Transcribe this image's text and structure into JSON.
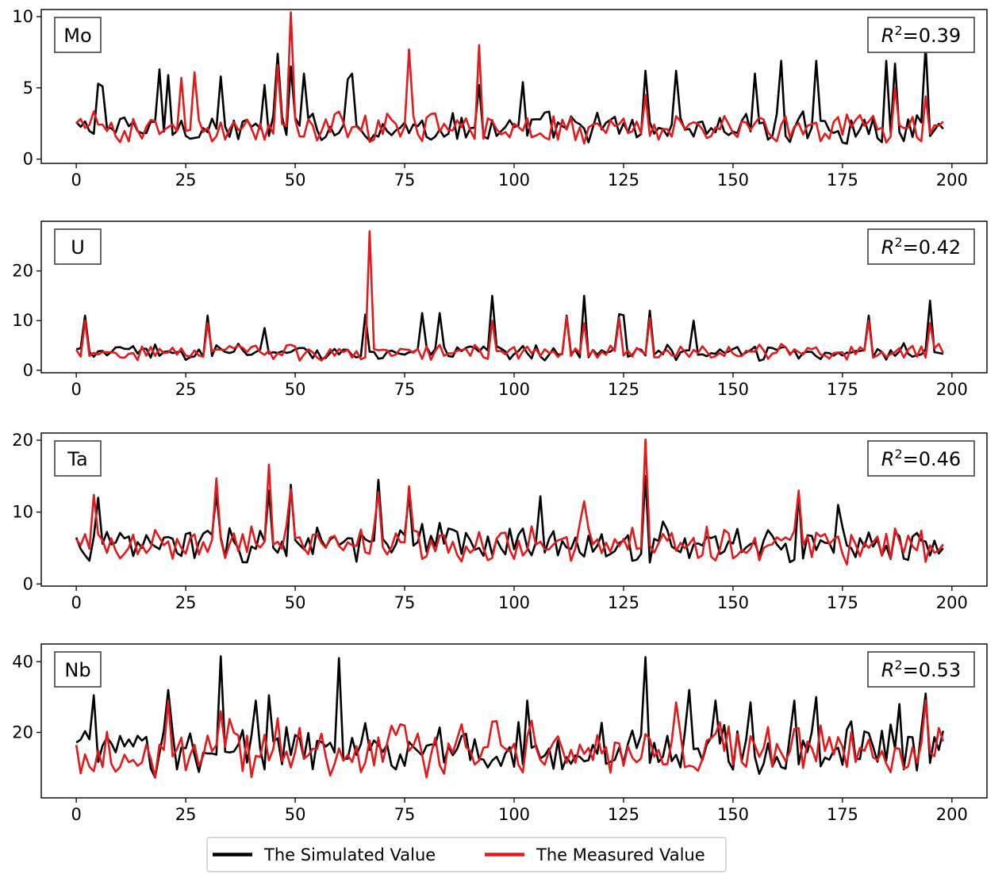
{
  "chart_data": {
    "type": "line",
    "legend": {
      "placement": "bottom-center",
      "entries": [
        {
          "label": "The Simulated Value",
          "color": "#000000"
        },
        {
          "label": "The Measured Value",
          "color": "#e31a1c"
        }
      ]
    },
    "panels": [
      {
        "element": "Mo",
        "r2_prefix": "R",
        "r2_exp": "2",
        "r2_value": "=0.39",
        "xlim": [
          -8,
          208
        ],
        "ylim": [
          -0.3,
          10.5
        ],
        "xticks": [
          0,
          25,
          50,
          75,
          100,
          125,
          150,
          175,
          200
        ],
        "yticks": [
          0,
          5,
          10
        ],
        "series": [
          {
            "color": "#000000",
            "peaks": {
              "5": 5.3,
              "6": 5.1,
              "19": 6.3,
              "21": 5.9,
              "46": 7.4,
              "52": 6.0,
              "62": 5.6,
              "63": 6.0,
              "92": 5.2,
              "102": 5.4,
              "130": 6.2,
              "137": 6.2,
              "155": 6.0,
              "161": 6.9,
              "169": 6.9,
              "185": 6.9,
              "187": 6.7,
              "194": 8.0,
              "33": 5.8,
              "43": 5.2,
              "49": 6.5
            }
          },
          {
            "color": "#e31a1c",
            "peaks": {
              "24": 5.7,
              "27": 6.1,
              "49": 10.3,
              "46": 6.6,
              "76": 7.7,
              "92": 8.0,
              "187": 5.0,
              "194": 4.4,
              "130": 4.5
            }
          }
        ]
      },
      {
        "element": "U",
        "r2_prefix": "R",
        "r2_exp": "2",
        "r2_value": "=0.42",
        "xlim": [
          -8,
          208
        ],
        "ylim": [
          -0.5,
          30
        ],
        "xticks": [
          0,
          25,
          50,
          75,
          100,
          125,
          150,
          175,
          200
        ],
        "yticks": [
          0,
          10,
          20
        ],
        "series": [
          {
            "color": "#000000",
            "peaks": {
              "2": 11.0,
              "30": 11.0,
              "43": 8.5,
              "66": 11.2,
              "79": 11.5,
              "83": 11.5,
              "95": 15.0,
              "112": 11.0,
              "116": 15.0,
              "124": 11.3,
              "125": 11.1,
              "131": 12.0,
              "141": 10.0,
              "181": 11.0,
              "195": 14.0
            }
          },
          {
            "color": "#e31a1c",
            "peaks": {
              "67": 28.0,
              "2": 10.0,
              "30": 9.5,
              "95": 10.0,
              "112": 10.8,
              "116": 9.5,
              "124": 10.5,
              "131": 10.5,
              "195": 9.5,
              "181": 10.0
            }
          }
        ]
      },
      {
        "element": "Ta",
        "r2_prefix": "R",
        "r2_exp": "2",
        "r2_value": "=0.46",
        "xlim": [
          -8,
          208
        ],
        "ylim": [
          -0.3,
          21
        ],
        "xticks": [
          0,
          25,
          50,
          75,
          100,
          125,
          150,
          175,
          200
        ],
        "yticks": [
          0,
          10,
          20
        ],
        "series": [
          {
            "color": "#000000",
            "peaks": {
              "5": 12.0,
              "32": 12.5,
              "44": 13.0,
              "49": 13.8,
              "69": 14.5,
              "76": 12.5,
              "106": 12.2,
              "130": 15.0,
              "165": 12.5,
              "174": 11.0
            }
          },
          {
            "color": "#e31a1c",
            "peaks": {
              "4": 12.4,
              "32": 14.7,
              "44": 16.6,
              "49": 13.2,
              "69": 12.8,
              "76": 13.6,
              "130": 20.1,
              "165": 13.0,
              "116": 11.5
            }
          }
        ]
      },
      {
        "element": "Nb",
        "r2_prefix": "R",
        "r2_exp": "2",
        "r2_value": "=0.53",
        "xlim": [
          -8,
          208
        ],
        "ylim": [
          1.5,
          45
        ],
        "xticks": [
          0,
          25,
          50,
          75,
          100,
          125,
          150,
          175,
          200
        ],
        "yticks": [
          20,
          40
        ],
        "series": [
          {
            "color": "#000000",
            "peaks": {
              "4": 30.5,
              "21": 32.0,
              "33": 41.5,
              "41": 29.0,
              "44": 30.5,
              "60": 41.0,
              "103": 29.0,
              "130": 41.3,
              "140": 32.0,
              "146": 29.0,
              "154": 28.5,
              "164": 29.0,
              "169": 30.0,
              "188": 28.0,
              "194": 31.0
            }
          },
          {
            "color": "#e31a1c",
            "peaks": {
              "21": 29.0,
              "33": 26.0,
              "137": 28.5,
              "194": 29.0,
              "46": 24.0
            }
          }
        ]
      }
    ]
  }
}
